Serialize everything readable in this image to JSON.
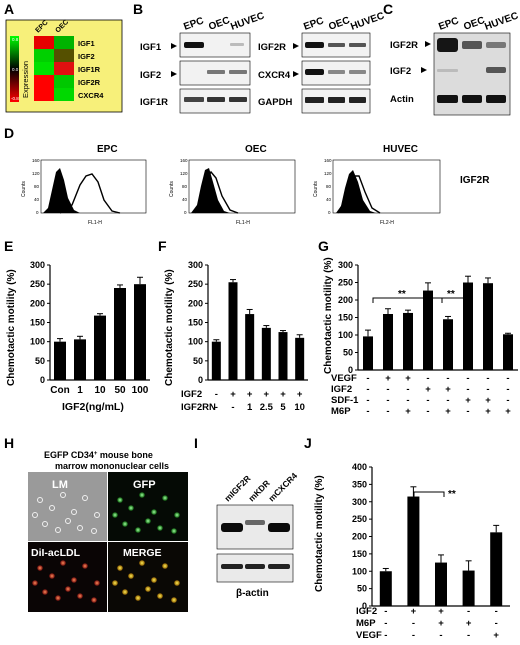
{
  "panels": {
    "A": {
      "letter": "A",
      "col_labels": [
        "EPC",
        "OEC"
      ],
      "side_label": "Expression",
      "row_labels": [
        "IGF1",
        "IGF2",
        "IGF1R",
        "IGF2R",
        "CXCR4"
      ],
      "scale_top": "0.8",
      "scale_mid": "0.0",
      "scale_bottom": "-0.8"
    },
    "B": {
      "letter": "B",
      "col_labels": [
        "EPC",
        "OEC",
        "HUVEC"
      ],
      "left_labels": [
        "IGF1",
        "IGF2",
        "IGF1R"
      ],
      "right_col_labels": [
        "EPC",
        "OEC",
        "HUVEC"
      ],
      "right_labels": [
        "IGF2R",
        "CXCR4",
        "GAPDH"
      ]
    },
    "C": {
      "letter": "C",
      "col_labels": [
        "EPC",
        "OEC",
        "HUVEC"
      ],
      "row_labels": [
        "IGF2R",
        "IGF2",
        "Actin"
      ]
    },
    "D": {
      "letter": "D",
      "titles": [
        "EPC",
        "OEC",
        "HUVEC"
      ],
      "side_label": "IGF2R",
      "ylabel": "Counts",
      "xlabels": [
        "FL1-H",
        "FL1-H",
        "FL2-H"
      ],
      "yticks": [
        "0",
        "40",
        "80",
        "120",
        "160"
      ]
    },
    "E": {
      "letter": "E",
      "ylabel": "Chemotactic motility (%)",
      "xlabel": "IGF2(ng/mL)"
    },
    "F": {
      "letter": "F",
      "ylabel": "Chemotactic motility (%)",
      "row_labels": [
        "IGF2",
        "IGF2RN"
      ],
      "rows": [
        [
          "-",
          "+",
          "+",
          "+",
          "+",
          "+"
        ],
        [
          "-",
          "-",
          "1",
          "2.5",
          "5",
          "10"
        ]
      ]
    },
    "G": {
      "letter": "G",
      "ylabel": "Chemotactic motility (%)",
      "row_labels": [
        "VEGF",
        "IGF2",
        "SDF-1",
        "M6P"
      ],
      "rows": [
        [
          "-",
          "+",
          "+",
          "-",
          "-",
          "-",
          "-",
          "-"
        ],
        [
          "-",
          "-",
          "-",
          "+",
          "+",
          "-",
          "-",
          "-"
        ],
        [
          "-",
          "-",
          "-",
          "-",
          "-",
          "+",
          "+",
          "-"
        ],
        [
          "-",
          "-",
          "+",
          "-",
          "+",
          "-",
          "+",
          "+"
        ]
      ],
      "sig": [
        "**",
        "**"
      ]
    },
    "H": {
      "letter": "H",
      "title_line1": "EGFP CD34",
      "title_sup": "+",
      "title_line1_end": " mouse bone",
      "title_line2": "marrow mononuclear cells",
      "quadrants": [
        "LM",
        "GFP",
        "DiI-acLDL",
        "MERGE"
      ]
    },
    "I": {
      "letter": "I",
      "col_labels": [
        "mIGF2R",
        "mKDR",
        "mCXCR4"
      ],
      "bottom_label": "β-actin"
    },
    "J": {
      "letter": "J",
      "ylabel": "Chemotactic motility (%)",
      "row_labels": [
        "IGF2",
        "M6P",
        "VEGF"
      ],
      "rows": [
        [
          "-",
          "+",
          "+",
          "-",
          "-"
        ],
        [
          "-",
          "-",
          "+",
          "+",
          "-"
        ],
        [
          "-",
          "-",
          "-",
          "-",
          "+"
        ]
      ],
      "sig": "**"
    }
  },
  "chart_data": [
    {
      "panel": "E",
      "type": "bar",
      "categories": [
        "Con",
        "1",
        "10",
        "50",
        "100"
      ],
      "values": [
        100,
        106,
        168,
        240,
        250
      ],
      "errors": [
        8,
        8,
        5,
        8,
        18
      ],
      "ylabel": "Chemotactic motility (%)",
      "xlabel": "IGF2(ng/mL)",
      "ylim": [
        0,
        300
      ],
      "yticks": [
        0,
        50,
        100,
        150,
        200,
        250,
        300
      ]
    },
    {
      "panel": "F",
      "type": "bar",
      "categories": [
        "1",
        "2",
        "3",
        "4",
        "5",
        "6"
      ],
      "values": [
        100,
        255,
        172,
        136,
        125,
        110
      ],
      "errors": [
        5,
        7,
        12,
        6,
        4,
        8
      ],
      "ylabel": "Chemotactic motility (%)",
      "ylim": [
        0,
        300
      ],
      "yticks": [
        0,
        50,
        100,
        150,
        200,
        250,
        300
      ]
    },
    {
      "panel": "G",
      "type": "bar",
      "categories": [
        "1",
        "2",
        "3",
        "4",
        "5",
        "6",
        "7",
        "8"
      ],
      "values": [
        96,
        160,
        163,
        227,
        145,
        250,
        248,
        102
      ],
      "errors": [
        18,
        15,
        8,
        22,
        8,
        18,
        15,
        3
      ],
      "ylabel": "Chemotactic motility (%)",
      "ylim": [
        0,
        300
      ],
      "yticks": [
        0,
        50,
        100,
        150,
        200,
        250,
        300
      ]
    },
    {
      "panel": "J",
      "type": "bar",
      "categories": [
        "1",
        "2",
        "3",
        "4",
        "5"
      ],
      "values": [
        100,
        315,
        125,
        102,
        212
      ],
      "errors": [
        8,
        28,
        22,
        28,
        20
      ],
      "ylabel": "Chemotactic motility (%)",
      "ylim": [
        0,
        400
      ],
      "yticks": [
        0,
        50,
        100,
        150,
        200,
        250,
        300,
        350,
        400
      ]
    }
  ]
}
